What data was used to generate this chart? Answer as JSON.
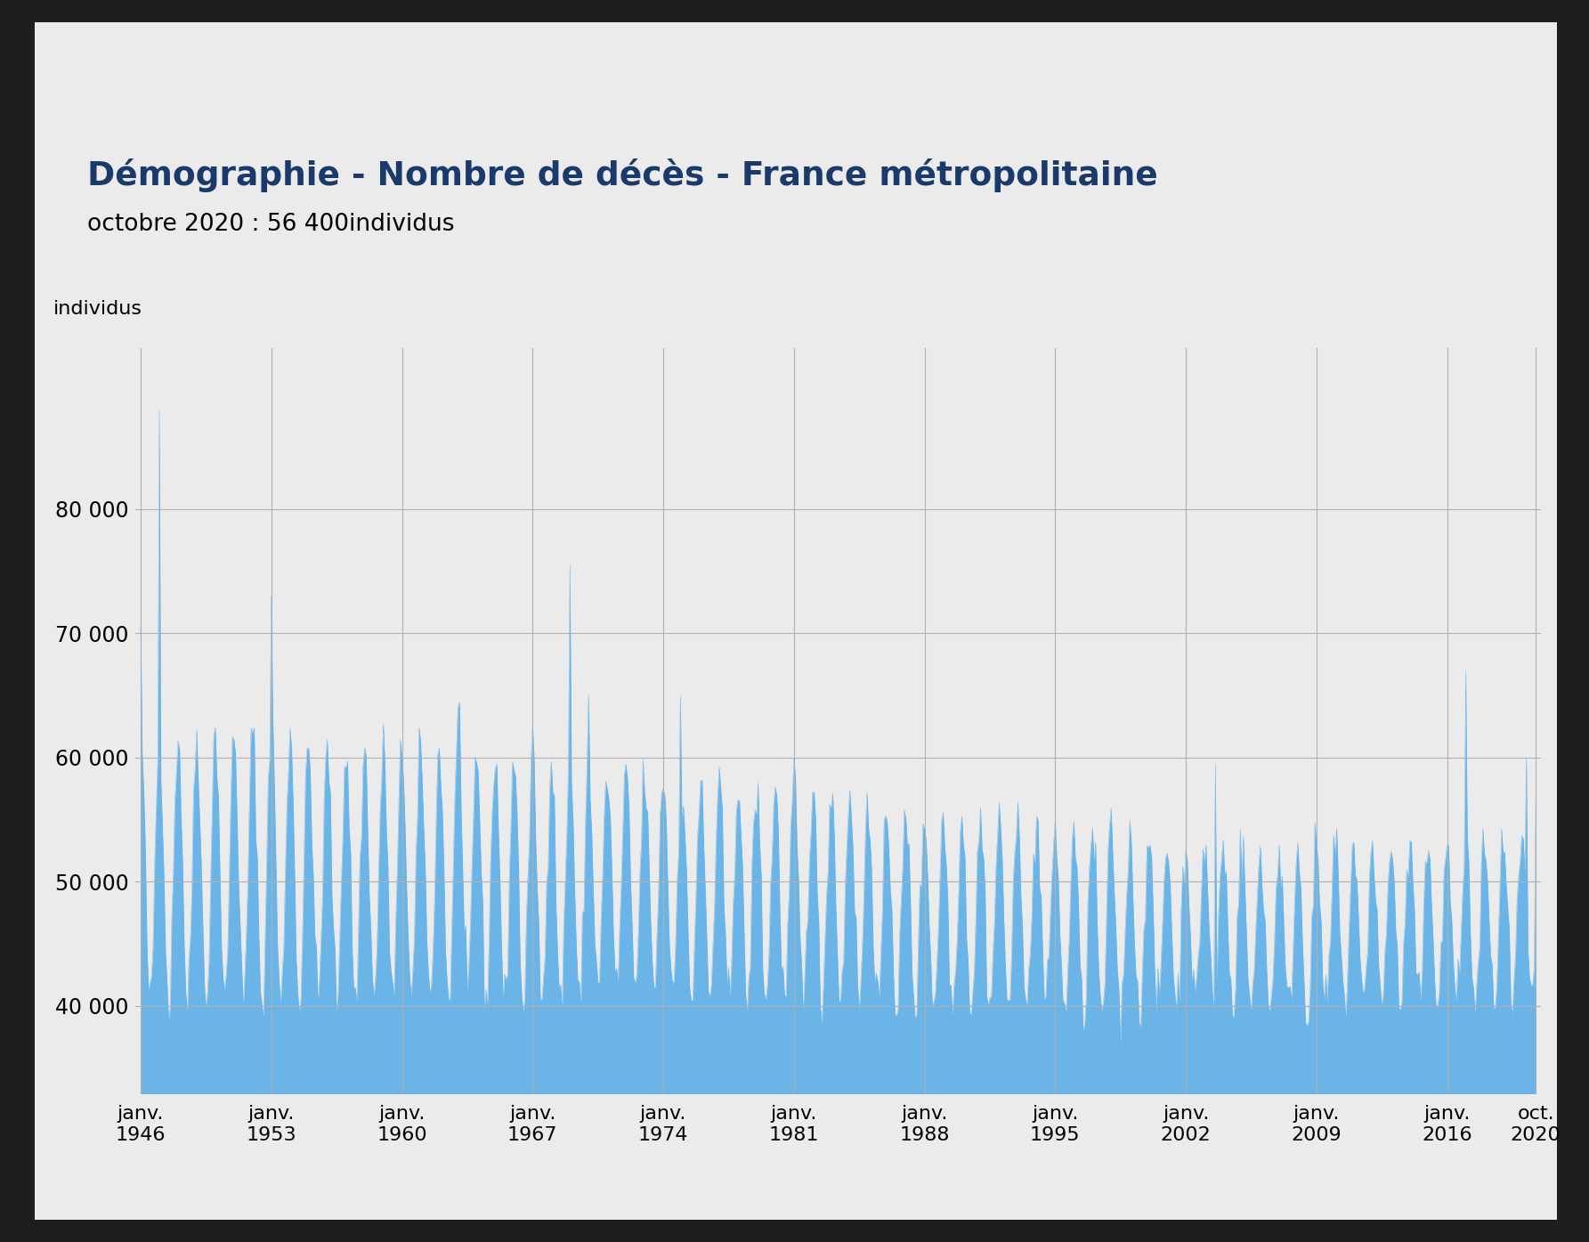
{
  "title": "Démographie - Nombre de décès - France métropolitaine",
  "subtitle": "octobre 2020 : 56 400individus",
  "ylabel": "individus",
  "line_color": "#6ab4e8",
  "fill_color": "#6ab4e8",
  "bg_color": "#ebebeb",
  "outer_bg_color": "#1e1e1e",
  "title_color": "#1a3a6b",
  "subtitle_color": "#000000",
  "ylabel_color": "#000000",
  "tick_label_color": "#000000",
  "grid_color": "#b0b0b0",
  "yticks": [
    40000,
    50000,
    60000,
    70000,
    80000
  ],
  "ytick_labels": [
    "40 000",
    "50 000",
    "60 000",
    "70 000",
    "80 000"
  ],
  "ylim_min": 33000,
  "ylim_max": 93000,
  "start_year": 1946,
  "start_month": 1,
  "end_year": 2020,
  "end_month": 10
}
